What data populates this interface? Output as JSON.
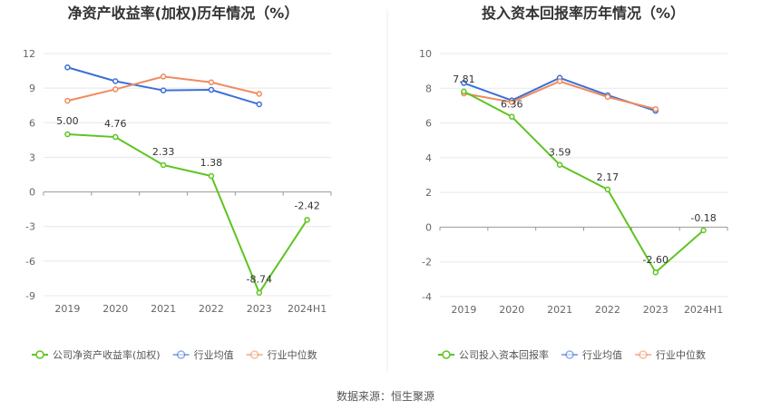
{
  "source": "数据来源：恒生聚源",
  "chart_data": [
    {
      "type": "line",
      "title": "净资产收益率(加权)历年情况（%）",
      "categories": [
        "2019",
        "2020",
        "2021",
        "2022",
        "2023",
        "2024H1"
      ],
      "ylim": [
        -9,
        12
      ],
      "yticks": [
        -9,
        -6,
        -3,
        0,
        3,
        6,
        9,
        12
      ],
      "grid": true,
      "legend_position": "bottom-left",
      "series": [
        {
          "name": "公司净资产收益率(加权)",
          "color": "#5ec421",
          "values": [
            5.0,
            4.76,
            2.33,
            1.38,
            -8.74,
            -2.42
          ],
          "labels": [
            "5.00",
            "4.76",
            "2.33",
            "1.38",
            "-8.74",
            "-2.42"
          ]
        },
        {
          "name": "行业均值",
          "color": "#3b6fd8",
          "values": [
            10.8,
            9.6,
            8.8,
            8.85,
            7.6,
            null
          ]
        },
        {
          "name": "行业中位数",
          "color": "#f08a5d",
          "values": [
            7.9,
            8.9,
            10.0,
            9.5,
            8.5,
            null
          ]
        }
      ]
    },
    {
      "type": "line",
      "title": "投入资本回报率历年情况（%）",
      "categories": [
        "2019",
        "2020",
        "2021",
        "2022",
        "2023",
        "2024H1"
      ],
      "ylim": [
        -4,
        10
      ],
      "yticks": [
        -4,
        -2,
        0,
        2,
        4,
        6,
        8,
        10
      ],
      "grid": true,
      "legend_position": "bottom-left",
      "series": [
        {
          "name": "公司投入资本回报率",
          "color": "#5ec421",
          "values": [
            7.81,
            6.36,
            3.59,
            2.17,
            -2.6,
            -0.18
          ],
          "labels": [
            "7.81",
            "6.36",
            "3.59",
            "2.17",
            "-2.60",
            "-0.18"
          ]
        },
        {
          "name": "行业均值",
          "color": "#3b6fd8",
          "values": [
            8.3,
            7.3,
            8.6,
            7.6,
            6.7,
            null
          ]
        },
        {
          "name": "行业中位数",
          "color": "#f08a5d",
          "values": [
            7.7,
            7.2,
            8.4,
            7.5,
            6.8,
            null
          ]
        }
      ]
    }
  ]
}
